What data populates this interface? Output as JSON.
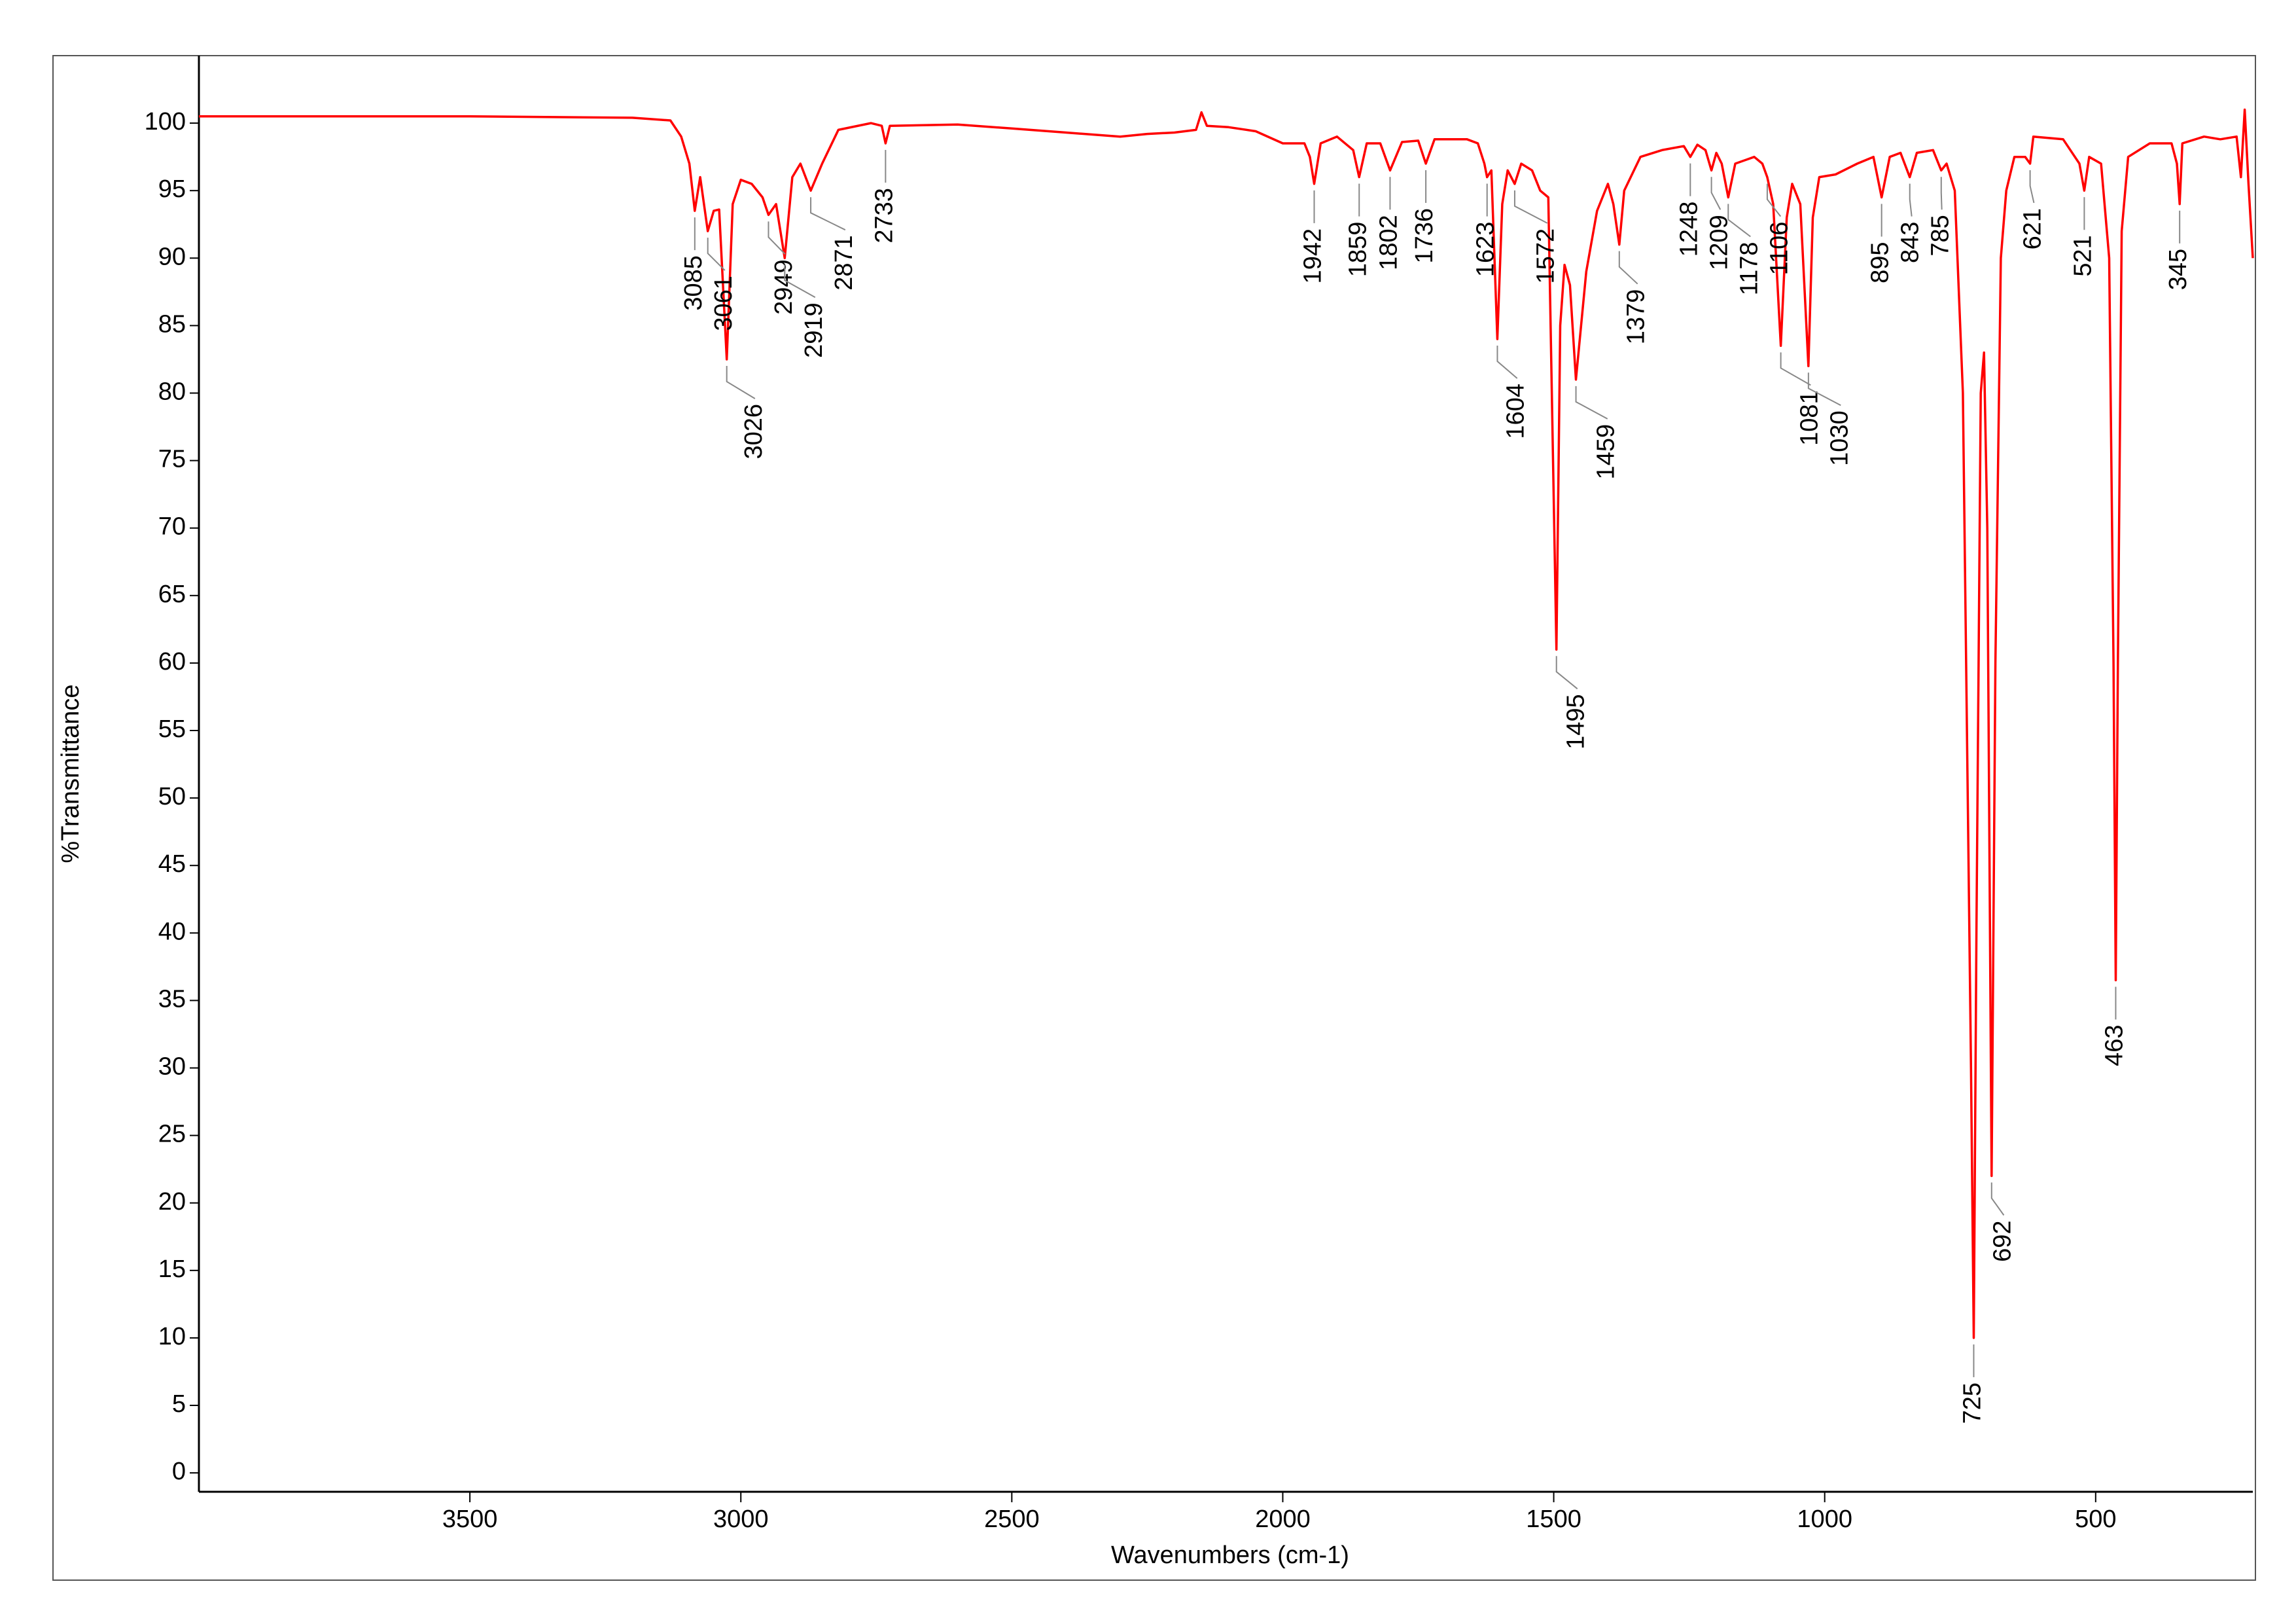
{
  "chart_data": {
    "type": "line",
    "x_label": "Wavenumbers (cm-1)",
    "y_label": "%Transmittance",
    "xlim": [
      4000,
      210
    ],
    "ylim": [
      -1.4,
      105
    ],
    "xticks": [
      3500,
      3000,
      2500,
      2000,
      1500,
      1000,
      500
    ],
    "yticks": [
      0,
      5,
      10,
      15,
      20,
      25,
      30,
      35,
      40,
      45,
      50,
      55,
      60,
      65,
      70,
      75,
      80,
      85,
      90,
      95,
      100
    ],
    "x": [
      4000,
      3500,
      3200,
      3130,
      3110,
      3095,
      3085,
      3075,
      3061,
      3050,
      3040,
      3026,
      3015,
      3000,
      2980,
      2960,
      2949,
      2935,
      2919,
      2905,
      2890,
      2871,
      2850,
      2820,
      2760,
      2740,
      2733,
      2725,
      2600,
      2500,
      2400,
      2300,
      2250,
      2200,
      2160,
      2150,
      2140,
      2100,
      2050,
      2000,
      1960,
      1950,
      1942,
      1930,
      1900,
      1870,
      1859,
      1845,
      1820,
      1802,
      1780,
      1750,
      1736,
      1720,
      1660,
      1640,
      1628,
      1623,
      1615,
      1604,
      1595,
      1585,
      1572,
      1560,
      1540,
      1525,
      1510,
      1495,
      1488,
      1480,
      1470,
      1459,
      1440,
      1420,
      1400,
      1390,
      1379,
      1370,
      1340,
      1300,
      1260,
      1248,
      1235,
      1220,
      1209,
      1200,
      1190,
      1178,
      1165,
      1130,
      1115,
      1106,
      1095,
      1081,
      1070,
      1060,
      1045,
      1030,
      1022,
      1010,
      980,
      940,
      910,
      895,
      880,
      860,
      843,
      830,
      800,
      790,
      785,
      775,
      760,
      745,
      730,
      725,
      720,
      712,
      706,
      700,
      692,
      685,
      675,
      665,
      650,
      630,
      621,
      615,
      560,
      530,
      521,
      512,
      490,
      475,
      467,
      463,
      459,
      452,
      440,
      400,
      360,
      350,
      345,
      340,
      300,
      270,
      240,
      232,
      225,
      218,
      210
    ],
    "series": [
      {
        "color": "#ff0000",
        "values": [
          100.5,
          100.5,
          100.4,
          100.2,
          99,
          97,
          93.5,
          96,
          92,
          93.5,
          93.6,
          82.5,
          94,
          95.8,
          95.5,
          94.5,
          93.2,
          94,
          90,
          96,
          97,
          95,
          97,
          99.5,
          100,
          99.8,
          98.5,
          99.8,
          99.9,
          99.6,
          99.3,
          99.0,
          99.2,
          99.3,
          99.5,
          100.8,
          99.8,
          99.7,
          99.4,
          98.5,
          98.5,
          97.5,
          95.5,
          98.5,
          99,
          98,
          96,
          98.5,
          98.5,
          96.5,
          98.6,
          98.7,
          97,
          98.8,
          98.8,
          98.5,
          97,
          96,
          96.5,
          84,
          94,
          96.5,
          95.5,
          97,
          96.5,
          95,
          94.5,
          61,
          85,
          89.5,
          88,
          81,
          89,
          93.5,
          95.5,
          94,
          91,
          95,
          97.5,
          98,
          98.3,
          97.5,
          98.4,
          98,
          96.5,
          97.8,
          97,
          94.5,
          97,
          97.5,
          97,
          96,
          94,
          83.5,
          93,
          95.5,
          94,
          82,
          93,
          96,
          96.2,
          97,
          97.5,
          94.5,
          97.5,
          97.8,
          96,
          97.8,
          98,
          97,
          96.5,
          97,
          95,
          80,
          30,
          10,
          40,
          80,
          83,
          70,
          22,
          60,
          90,
          95,
          97.5,
          97.5,
          97,
          99,
          98.8,
          97,
          95,
          97.5,
          97,
          90,
          60,
          36.5,
          60,
          92,
          97.5,
          98.5,
          98.5,
          97,
          94,
          98.5,
          99,
          98.8,
          99,
          96,
          101,
          95.5,
          90
        ]
      }
    ],
    "peaks": [
      {
        "x": 3085,
        "y": 93.5
      },
      {
        "x": 3061,
        "y": 92
      },
      {
        "x": 3026,
        "y": 82.5
      },
      {
        "x": 2949,
        "y": 93.2
      },
      {
        "x": 2919,
        "y": 90
      },
      {
        "x": 2871,
        "y": 95
      },
      {
        "x": 2733,
        "y": 98.5
      },
      {
        "x": 1942,
        "y": 95.5
      },
      {
        "x": 1859,
        "y": 96
      },
      {
        "x": 1802,
        "y": 96.5
      },
      {
        "x": 1736,
        "y": 97
      },
      {
        "x": 1623,
        "y": 96
      },
      {
        "x": 1604,
        "y": 84
      },
      {
        "x": 1572,
        "y": 95.5
      },
      {
        "x": 1495,
        "y": 61
      },
      {
        "x": 1459,
        "y": 81
      },
      {
        "x": 1379,
        "y": 91
      },
      {
        "x": 1248,
        "y": 97.5
      },
      {
        "x": 1209,
        "y": 96.5
      },
      {
        "x": 1178,
        "y": 94.5
      },
      {
        "x": 1106,
        "y": 96
      },
      {
        "x": 1081,
        "y": 83.5
      },
      {
        "x": 1030,
        "y": 82
      },
      {
        "x": 895,
        "y": 94.5
      },
      {
        "x": 843,
        "y": 96
      },
      {
        "x": 785,
        "y": 96.5
      },
      {
        "x": 725,
        "y": 10
      },
      {
        "x": 692,
        "y": 22
      },
      {
        "x": 621,
        "y": 97
      },
      {
        "x": 521,
        "y": 95
      },
      {
        "x": 463,
        "y": 36.5
      },
      {
        "x": 345,
        "y": 94
      }
    ]
  }
}
